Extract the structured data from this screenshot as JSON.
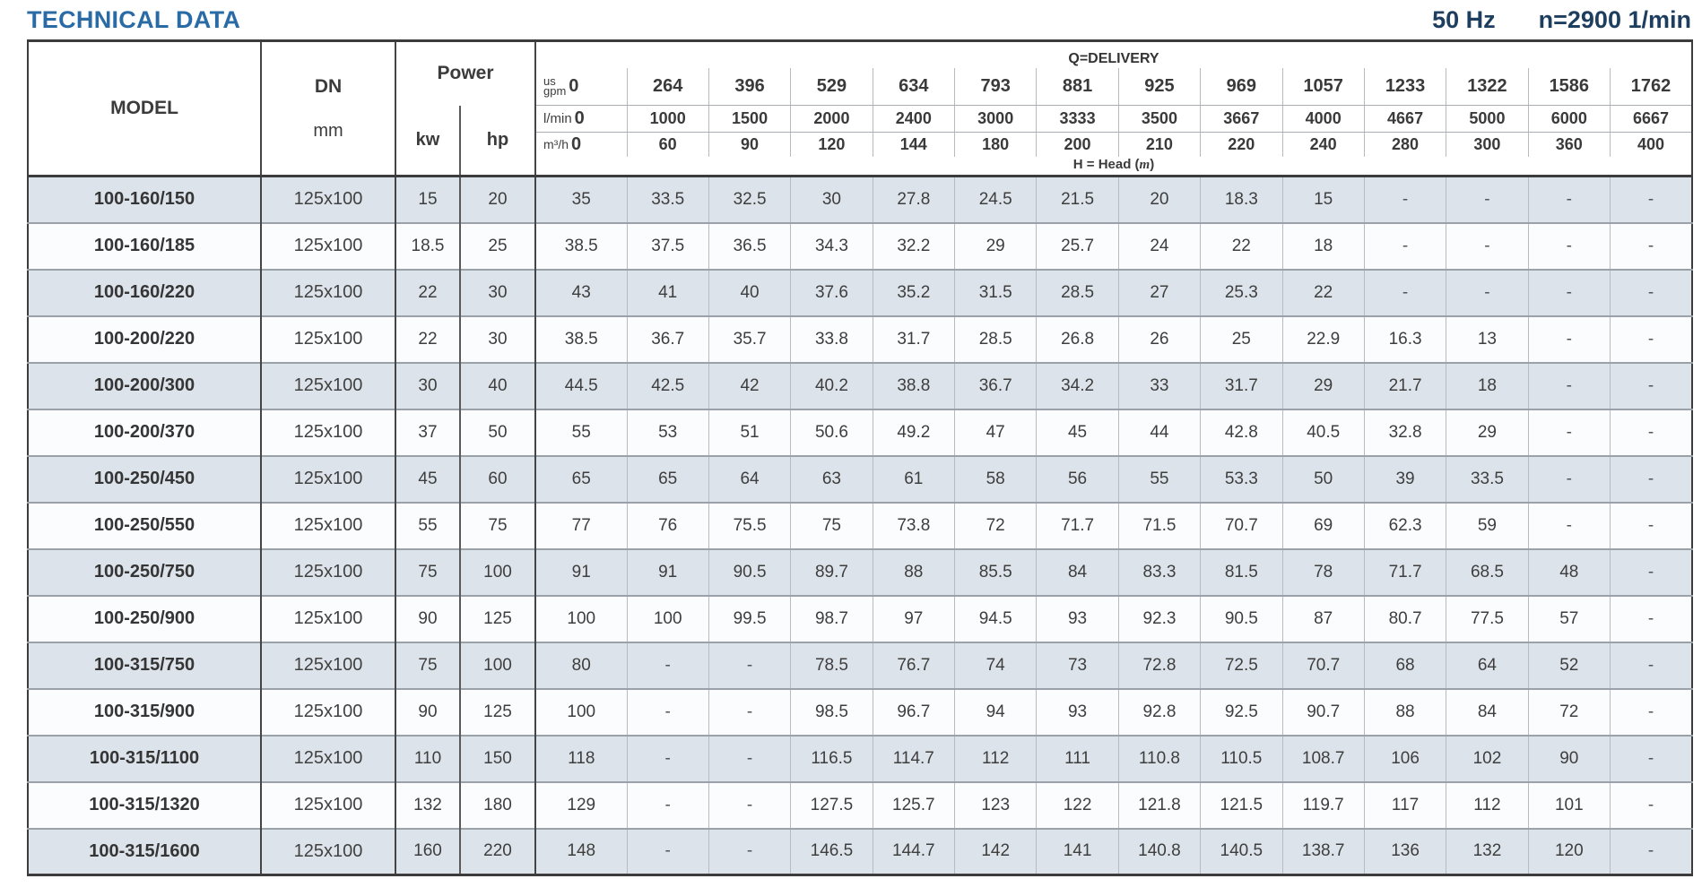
{
  "page": {
    "title": "TECHNICAL DATA",
    "frequency": "50 Hz",
    "speed": "n=2900 1/min"
  },
  "table": {
    "headers": {
      "model": "MODEL",
      "dn": "DN",
      "dn_unit": "mm",
      "power": "Power",
      "kw": "kw",
      "hp": "hp",
      "delivery_title": "Q=DELIVERY",
      "unit_gpm_top": "us",
      "unit_gpm": "gpm",
      "unit_lmin": "l/min",
      "unit_m3h": "m³/h",
      "head_label": "H = Head (",
      "head_label_unit": "m",
      "head_label_close": ")",
      "gpm": [
        "0",
        "264",
        "396",
        "529",
        "634",
        "793",
        "881",
        "925",
        "969",
        "1057",
        "1233",
        "1322",
        "1586",
        "1762"
      ],
      "lmin": [
        "0",
        "1000",
        "1500",
        "2000",
        "2400",
        "3000",
        "3333",
        "3500",
        "3667",
        "4000",
        "4667",
        "5000",
        "6000",
        "6667"
      ],
      "m3h": [
        "0",
        "60",
        "90",
        "120",
        "144",
        "180",
        "200",
        "210",
        "220",
        "240",
        "280",
        "300",
        "360",
        "400"
      ]
    },
    "rows": [
      {
        "model": "100-160/150",
        "dn": "125x100",
        "kw": "15",
        "hp": "20",
        "head": [
          "35",
          "33.5",
          "32.5",
          "30",
          "27.8",
          "24.5",
          "21.5",
          "20",
          "18.3",
          "15",
          "-",
          "-",
          "-",
          "-"
        ]
      },
      {
        "model": "100-160/185",
        "dn": "125x100",
        "kw": "18.5",
        "hp": "25",
        "head": [
          "38.5",
          "37.5",
          "36.5",
          "34.3",
          "32.2",
          "29",
          "25.7",
          "24",
          "22",
          "18",
          "-",
          "-",
          "-",
          "-"
        ]
      },
      {
        "model": "100-160/220",
        "dn": "125x100",
        "kw": "22",
        "hp": "30",
        "head": [
          "43",
          "41",
          "40",
          "37.6",
          "35.2",
          "31.5",
          "28.5",
          "27",
          "25.3",
          "22",
          "-",
          "-",
          "-",
          "-"
        ]
      },
      {
        "model": "100-200/220",
        "dn": "125x100",
        "kw": "22",
        "hp": "30",
        "head": [
          "38.5",
          "36.7",
          "35.7",
          "33.8",
          "31.7",
          "28.5",
          "26.8",
          "26",
          "25",
          "22.9",
          "16.3",
          "13",
          "-",
          "-"
        ]
      },
      {
        "model": "100-200/300",
        "dn": "125x100",
        "kw": "30",
        "hp": "40",
        "head": [
          "44.5",
          "42.5",
          "42",
          "40.2",
          "38.8",
          "36.7",
          "34.2",
          "33",
          "31.7",
          "29",
          "21.7",
          "18",
          "-",
          "-"
        ]
      },
      {
        "model": "100-200/370",
        "dn": "125x100",
        "kw": "37",
        "hp": "50",
        "head": [
          "55",
          "53",
          "51",
          "50.6",
          "49.2",
          "47",
          "45",
          "44",
          "42.8",
          "40.5",
          "32.8",
          "29",
          "-",
          "-"
        ]
      },
      {
        "model": "100-250/450",
        "dn": "125x100",
        "kw": "45",
        "hp": "60",
        "head": [
          "65",
          "65",
          "64",
          "63",
          "61",
          "58",
          "56",
          "55",
          "53.3",
          "50",
          "39",
          "33.5",
          "-",
          "-"
        ]
      },
      {
        "model": "100-250/550",
        "dn": "125x100",
        "kw": "55",
        "hp": "75",
        "head": [
          "77",
          "76",
          "75.5",
          "75",
          "73.8",
          "72",
          "71.7",
          "71.5",
          "70.7",
          "69",
          "62.3",
          "59",
          "-",
          "-"
        ]
      },
      {
        "model": "100-250/750",
        "dn": "125x100",
        "kw": "75",
        "hp": "100",
        "head": [
          "91",
          "91",
          "90.5",
          "89.7",
          "88",
          "85.5",
          "84",
          "83.3",
          "81.5",
          "78",
          "71.7",
          "68.5",
          "48",
          "-"
        ]
      },
      {
        "model": "100-250/900",
        "dn": "125x100",
        "kw": "90",
        "hp": "125",
        "head": [
          "100",
          "100",
          "99.5",
          "98.7",
          "97",
          "94.5",
          "93",
          "92.3",
          "90.5",
          "87",
          "80.7",
          "77.5",
          "57",
          "-"
        ]
      },
      {
        "model": "100-315/750",
        "dn": "125x100",
        "kw": "75",
        "hp": "100",
        "head": [
          "80",
          "-",
          "-",
          "78.5",
          "76.7",
          "74",
          "73",
          "72.8",
          "72.5",
          "70.7",
          "68",
          "64",
          "52",
          "-"
        ]
      },
      {
        "model": "100-315/900",
        "dn": "125x100",
        "kw": "90",
        "hp": "125",
        "head": [
          "100",
          "-",
          "-",
          "98.5",
          "96.7",
          "94",
          "93",
          "92.8",
          "92.5",
          "90.7",
          "88",
          "84",
          "72",
          "-"
        ]
      },
      {
        "model": "100-315/1100",
        "dn": "125x100",
        "kw": "110",
        "hp": "150",
        "head": [
          "118",
          "-",
          "-",
          "116.5",
          "114.7",
          "112",
          "111",
          "110.8",
          "110.5",
          "108.7",
          "106",
          "102",
          "90",
          "-"
        ]
      },
      {
        "model": "100-315/1320",
        "dn": "125x100",
        "kw": "132",
        "hp": "180",
        "head": [
          "129",
          "-",
          "-",
          "127.5",
          "125.7",
          "123",
          "122",
          "121.8",
          "121.5",
          "119.7",
          "117",
          "112",
          "101",
          "-"
        ]
      },
      {
        "model": "100-315/1600",
        "dn": "125x100",
        "kw": "160",
        "hp": "220",
        "head": [
          "148",
          "-",
          "-",
          "146.5",
          "144.7",
          "142",
          "141",
          "140.8",
          "140.5",
          "138.7",
          "136",
          "132",
          "120",
          "-"
        ]
      }
    ]
  }
}
